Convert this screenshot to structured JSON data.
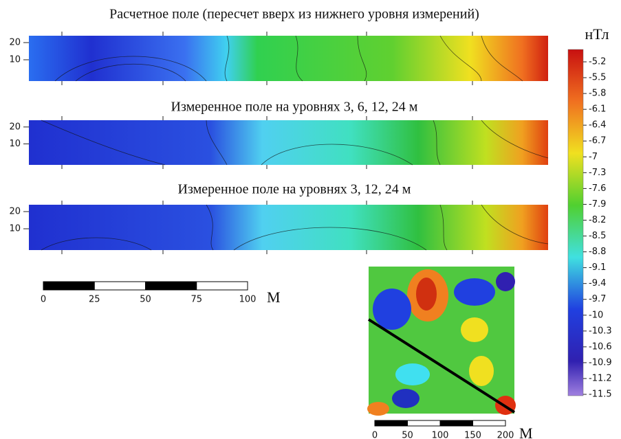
{
  "panels": [
    {
      "title": "Расчетное поле (пересчет вверх из нижнего уровня измерений)",
      "yticks": [
        20,
        10
      ]
    },
    {
      "title": "Измеренное поле на уровнях 3, 6, 12, 24 м",
      "yticks": [
        20,
        10
      ]
    },
    {
      "title": "Измеренное поле на уровнях 3, 12, 24 м",
      "yticks": [
        20,
        10
      ]
    }
  ],
  "colorbar": {
    "unit": "нТл",
    "ticks": [
      -5.2,
      -5.5,
      -5.8,
      -6.1,
      -6.4,
      -6.7,
      -7,
      -7.3,
      -7.6,
      -7.9,
      -8.2,
      -8.5,
      -8.8,
      -9.1,
      -9.4,
      -9.7,
      -10,
      -10.3,
      -10.6,
      -10.9,
      -11.2,
      -11.5
    ]
  },
  "scale_bar": {
    "ticks": [
      0,
      25,
      50,
      75,
      100
    ],
    "unit": "М"
  },
  "inset_scale_bar": {
    "ticks": [
      0,
      50,
      100,
      150,
      200
    ],
    "unit": "М"
  }
}
